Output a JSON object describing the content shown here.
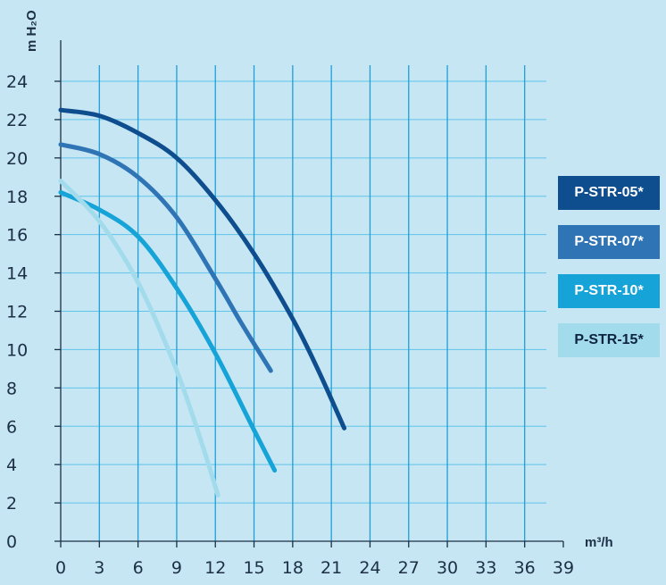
{
  "chart_data": {
    "type": "line",
    "title": "",
    "xlabel": "m³/h",
    "ylabel": "m H₂O",
    "x_ticks": [
      "0",
      "3",
      "6",
      "9",
      "12",
      "15",
      "18",
      "21",
      "24",
      "27",
      "30",
      "33",
      "36",
      "39"
    ],
    "y_ticks": [
      "0",
      "2",
      "4",
      "6",
      "8",
      "10",
      "12",
      "14",
      "16",
      "18",
      "20",
      "22",
      "24"
    ],
    "xlim": [
      0,
      39
    ],
    "ylim": [
      0,
      24
    ],
    "grid": "vertical",
    "legend_position": "right",
    "series": [
      {
        "name": "P-STR-05*",
        "color": "#0e4d8e",
        "points": [
          [
            0,
            22.5
          ],
          [
            3,
            22.2
          ],
          [
            6,
            21.3
          ],
          [
            9,
            20.0
          ],
          [
            12,
            17.8
          ],
          [
            15,
            15.0
          ],
          [
            18,
            11.6
          ],
          [
            20,
            8.9
          ],
          [
            22,
            5.9
          ]
        ]
      },
      {
        "name": "P-STR-07*",
        "color": "#2f74b5",
        "points": [
          [
            0,
            20.7
          ],
          [
            3,
            20.2
          ],
          [
            6,
            19.0
          ],
          [
            9,
            16.9
          ],
          [
            12,
            13.7
          ],
          [
            14,
            11.4
          ],
          [
            16.3,
            8.9
          ]
        ]
      },
      {
        "name": "P-STR-10*",
        "color": "#16a3d8",
        "points": [
          [
            0,
            18.2
          ],
          [
            3,
            17.3
          ],
          [
            6,
            15.9
          ],
          [
            9,
            13.2
          ],
          [
            12,
            9.8
          ],
          [
            15,
            5.8
          ],
          [
            16.6,
            3.7
          ]
        ]
      },
      {
        "name": "P-STR-15*",
        "color": "#a2dbec",
        "points": [
          [
            0,
            18.8
          ],
          [
            3,
            16.7
          ],
          [
            6,
            13.5
          ],
          [
            9,
            8.9
          ],
          [
            11,
            5.0
          ],
          [
            12.2,
            2.4
          ]
        ]
      }
    ]
  }
}
